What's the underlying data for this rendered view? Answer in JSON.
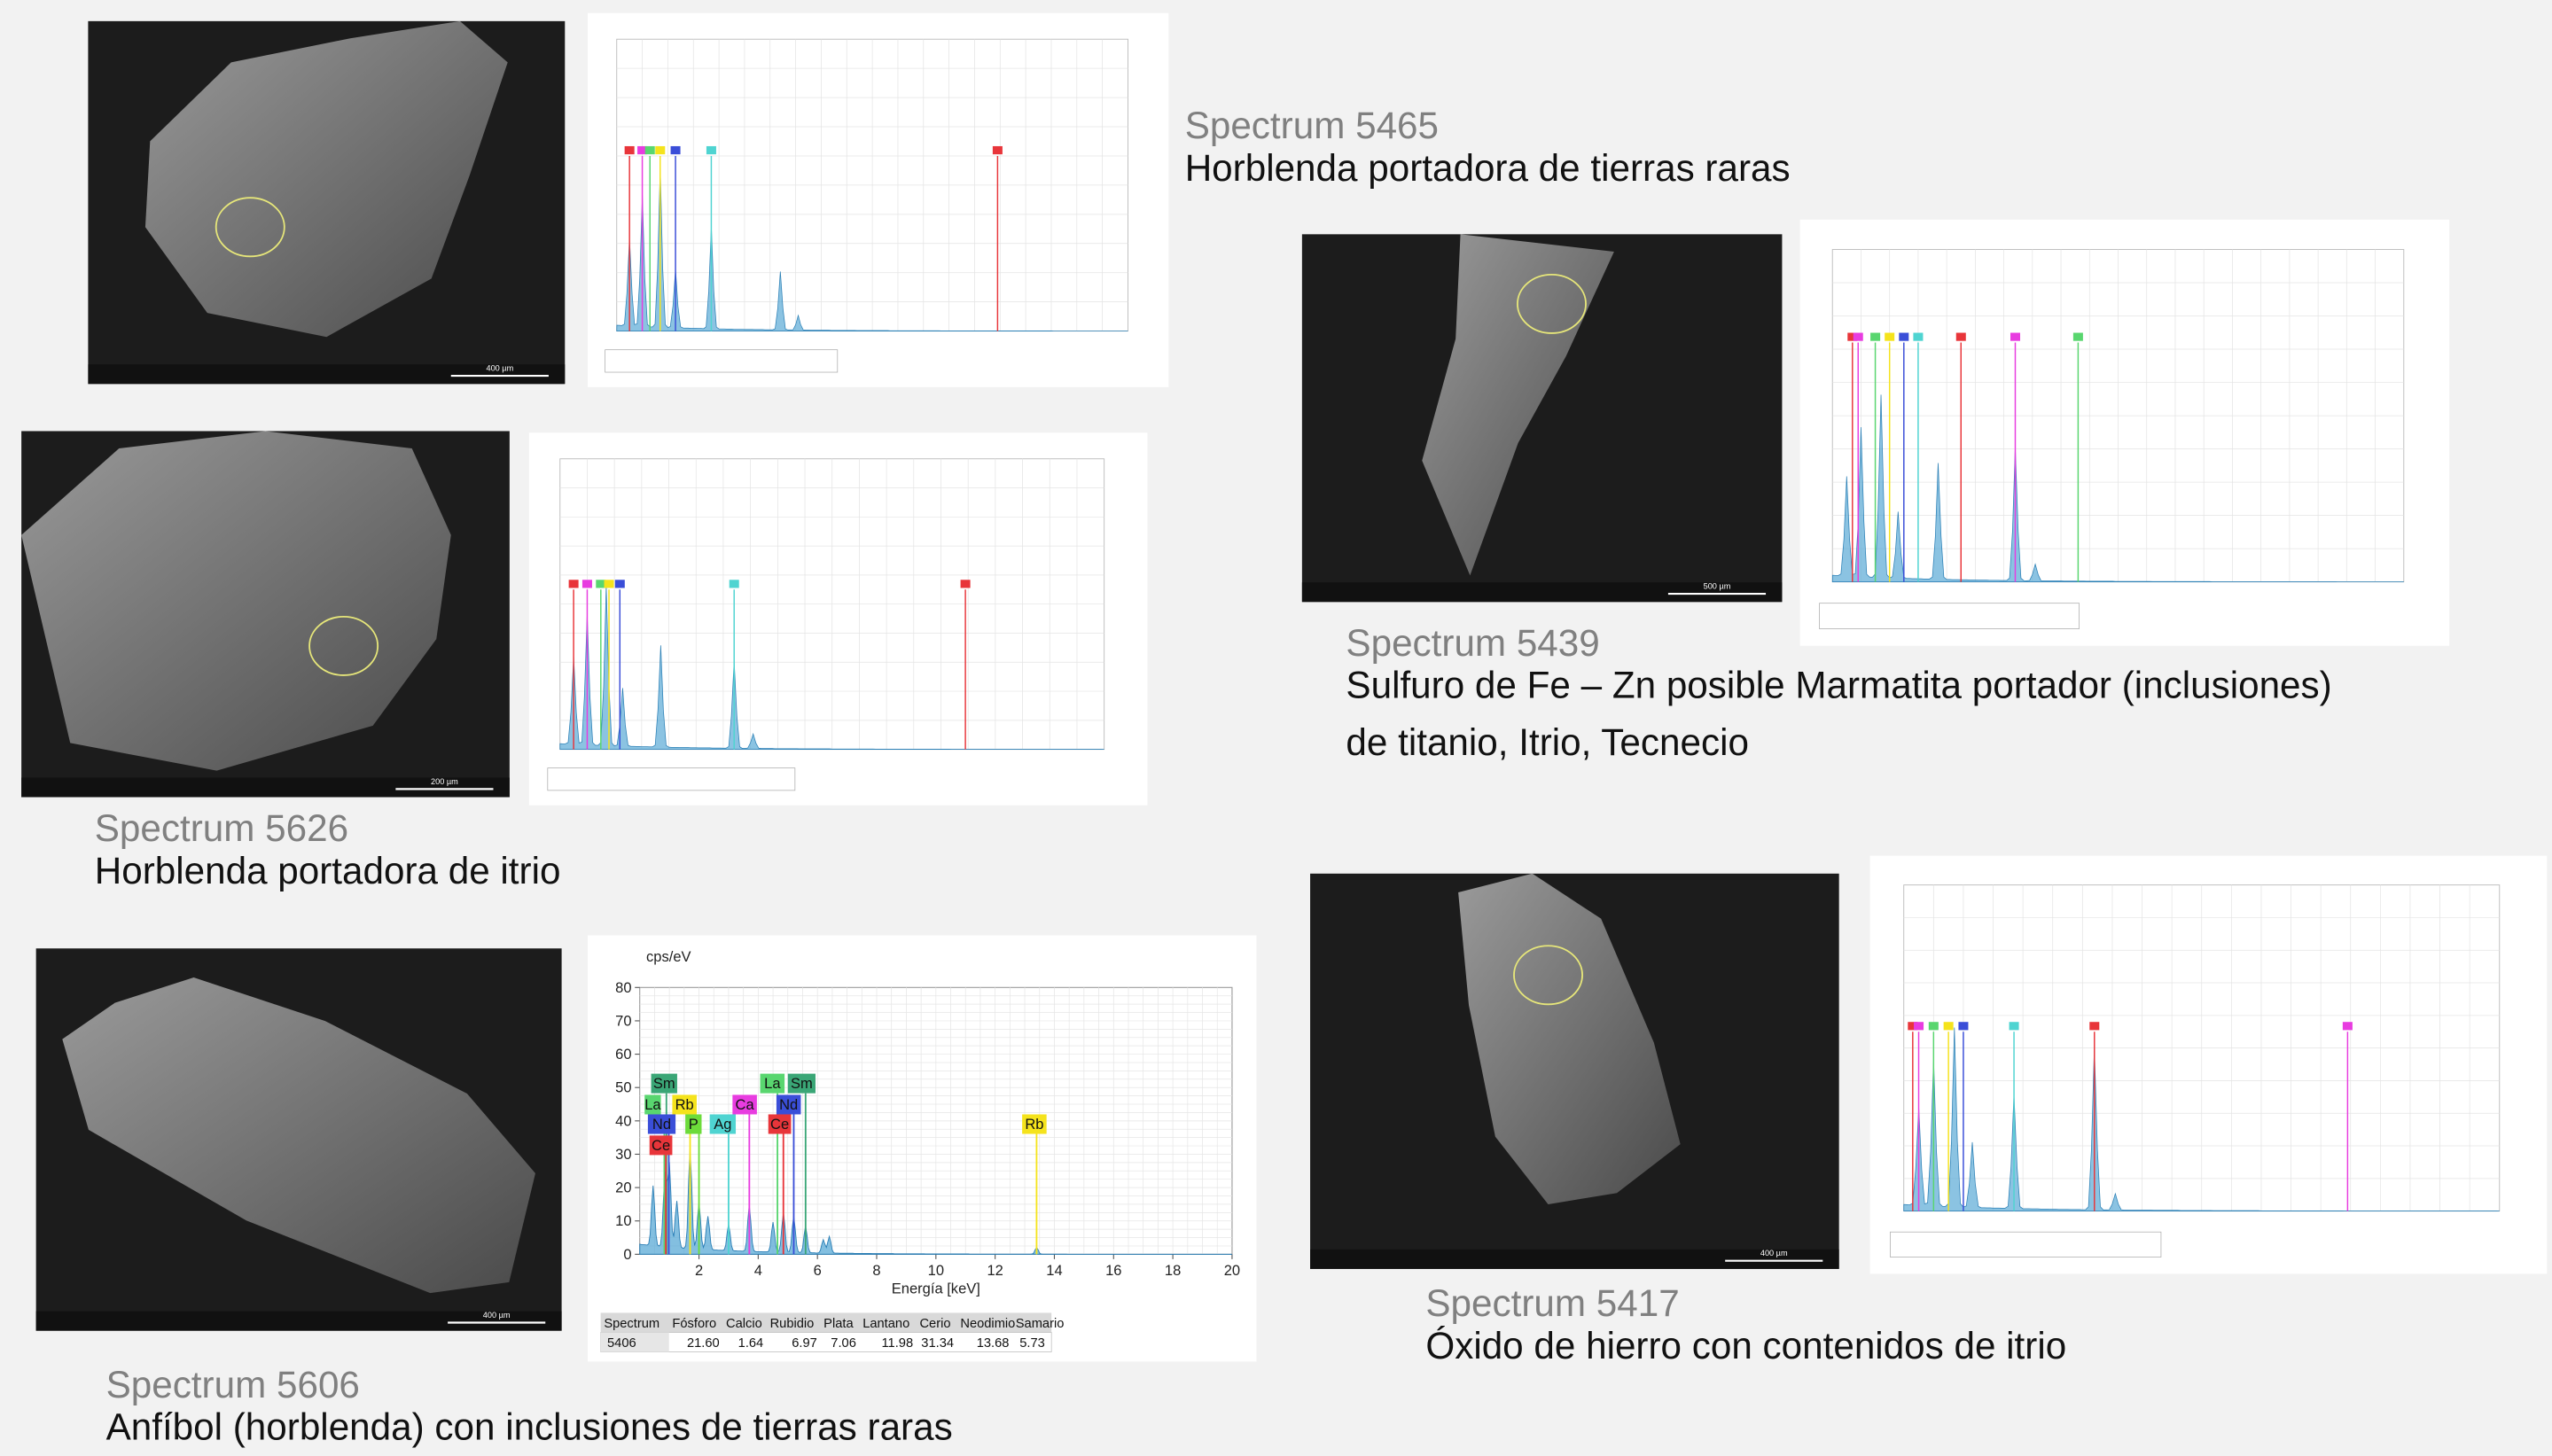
{
  "panels": [
    {
      "spectrum": "Spectrum 5465",
      "description": [
        "Horblenda portadora de tierras raras"
      ],
      "scale_label": "400 µm"
    },
    {
      "spectrum": "Spectrum 5626",
      "description": [
        "Horblenda portadora de itrio"
      ],
      "scale_label": "200 µm"
    },
    {
      "spectrum": "Spectrum 5439",
      "description": [
        "Sulfuro de Fe – Zn posible Marmatita portador (inclusiones)",
        "de titanio, Itrio, Tecnecio"
      ],
      "scale_label": "500 µm"
    },
    {
      "spectrum": "Spectrum 5606",
      "description": [
        "Anfíbol (horblenda) con inclusiones de tierras raras"
      ],
      "scale_label": "400 µm"
    },
    {
      "spectrum": "Spectrum 5417",
      "description": [
        "Óxido de hierro con contenidos de itrio"
      ],
      "scale_label": "400 µm"
    }
  ],
  "detail_chart": {
    "y_label": "cps/eV",
    "x_label": "Energía [keV]",
    "yticks": [
      0,
      10,
      20,
      30,
      40,
      50,
      60,
      70,
      80
    ],
    "xticks": [
      2,
      4,
      6,
      8,
      10,
      12,
      14,
      16,
      18,
      20
    ],
    "peak_labels": [
      "Sm",
      "La",
      "Rb",
      "Nd",
      "P",
      "Ag",
      "Ce",
      "La",
      "Sm",
      "Ca",
      "Nd",
      "Ce",
      "Rb"
    ],
    "table": {
      "header": [
        "Spectrum",
        "Fósforo",
        "Calcio",
        "Rubidio",
        "Plata",
        "Lantano",
        "Cerio",
        "Neodimio",
        "Samario"
      ],
      "row": [
        "5406",
        "21.60",
        "1.64",
        "6.97",
        "7.06",
        "11.98",
        "31.34",
        "13.68",
        "5.73"
      ]
    }
  }
}
